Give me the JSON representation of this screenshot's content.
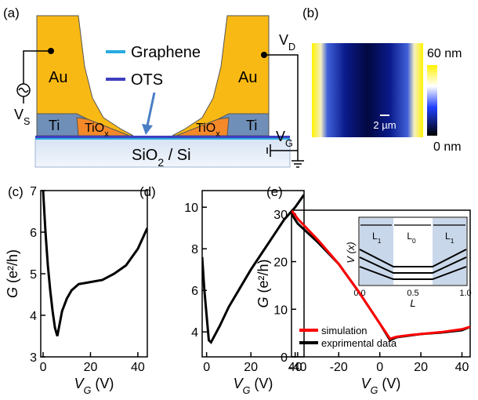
{
  "panels": {
    "a": {
      "label": "(a)",
      "legend": [
        "Graphene",
        "OTS"
      ],
      "au_left": "Au",
      "au_right": "Au",
      "ti_left": "Ti",
      "ti_right": "Ti",
      "tiox_left": [
        "TiO",
        "x"
      ],
      "tiox_right": [
        "TiO",
        "x"
      ],
      "vs": [
        "V",
        "S"
      ],
      "vd": [
        "V",
        "D"
      ],
      "vg": [
        "V",
        "G"
      ],
      "substrate": [
        "SiO",
        "2",
        " / Si"
      ]
    },
    "b": {
      "label": "(b)",
      "colorbar_max": "60 nm",
      "colorbar_min": "0 nm",
      "scale_bar": "2 µm"
    },
    "c": {
      "label": "(c)"
    },
    "d": {
      "label": "(d)"
    },
    "e": {
      "label": "(e)"
    },
    "inset": {
      "ylabel": "V (x)",
      "xlabel": "L",
      "l0": [
        "L",
        "0"
      ],
      "l1_left": [
        "L",
        "1"
      ],
      "l1_right": [
        "L",
        "1"
      ],
      "xticks": [
        "0.0",
        "0.5",
        "1.0"
      ]
    }
  },
  "chart_data": [
    {
      "type": "line",
      "xlabel": [
        "V",
        "G",
        " (V)"
      ],
      "ylabel": [
        "G",
        " (e²/h)"
      ],
      "x": [
        0,
        1,
        2,
        3,
        4,
        5,
        6,
        7,
        8,
        10,
        12,
        15,
        20,
        25,
        30,
        35,
        40,
        44
      ],
      "series": [
        {
          "color": "#000000",
          "values": [
            7.0,
            6.0,
            5.2,
            4.6,
            4.1,
            3.7,
            3.5,
            3.8,
            4.1,
            4.4,
            4.6,
            4.75,
            4.8,
            4.85,
            5.0,
            5.2,
            5.6,
            6.1
          ]
        }
      ],
      "xlim": [
        -1,
        44
      ],
      "ylim": [
        3,
        7
      ],
      "xticks": [
        0,
        20,
        40
      ],
      "yticks": [
        3,
        4,
        5,
        6,
        7
      ]
    },
    {
      "type": "line",
      "xlabel": [
        "V",
        "G",
        " (V)"
      ],
      "x": [
        -2,
        -1,
        0,
        1,
        2,
        4,
        6,
        10,
        15,
        20,
        25,
        30,
        35,
        40,
        44
      ],
      "series": [
        {
          "color": "#000000",
          "values": [
            7.6,
            6.0,
            4.8,
            3.6,
            3.5,
            3.9,
            4.3,
            5.2,
            6.1,
            7.0,
            7.8,
            8.6,
            9.4,
            10.0,
            10.6
          ]
        }
      ],
      "xlim": [
        -2,
        44
      ],
      "ylim": [
        2.8,
        10.8
      ],
      "xticks": [
        0,
        20,
        40
      ],
      "yticks": [
        4,
        6,
        8,
        10
      ]
    },
    {
      "type": "line",
      "xlabel": [
        "V",
        "G",
        " (V)"
      ],
      "ylabel": [
        "G",
        " (e²/h)"
      ],
      "x": [
        -43,
        -40,
        -30,
        -20,
        -10,
        0,
        5,
        8,
        15,
        20,
        30,
        40,
        44
      ],
      "series": [
        {
          "name": "simulation",
          "color": "#ff0000",
          "values": [
            30.8,
            29.0,
            24.5,
            19.5,
            13.5,
            7.0,
            3.8,
            4.2,
            4.6,
            4.8,
            5.2,
            5.8,
            6.3
          ]
        },
        {
          "name": "exprimental data",
          "color": "#000000",
          "values": [
            30.0,
            28.0,
            24.0,
            19.5,
            13.5,
            7.0,
            3.5,
            4.1,
            4.5,
            4.8,
            5.1,
            5.6,
            6.3
          ]
        }
      ],
      "xlim": [
        -43,
        44
      ],
      "ylim": [
        0,
        30.8
      ],
      "xticks": [
        -40,
        -20,
        0,
        20,
        40
      ],
      "yticks": [
        0,
        10,
        20,
        30
      ],
      "legend": "lower left"
    }
  ]
}
